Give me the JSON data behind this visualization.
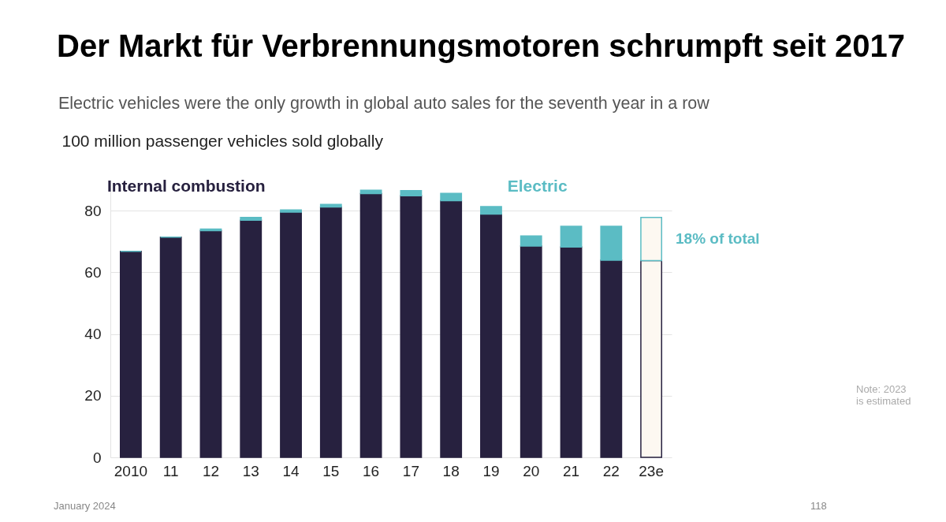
{
  "chart_data": {
    "type": "bar",
    "title": "Der Markt für Verbrennungsmotoren schrumpft seit 2017",
    "subtitle": "Electric vehicles were the only growth in global auto sales for the seventh year in a row",
    "ylabel": "100 million passenger vehicles sold globally",
    "categories": [
      "2010",
      "11",
      "12",
      "13",
      "14",
      "15",
      "16",
      "17",
      "18",
      "19",
      "20",
      "21",
      "22",
      "23e"
    ],
    "stacked": true,
    "ylim": [
      0,
      90
    ],
    "yticks": [
      0,
      20,
      40,
      60,
      80
    ],
    "grid": "y",
    "series": [
      {
        "name": "Internal combustion",
        "color": "#27213f",
        "colors": [
          "#27213f",
          "#27213f",
          "#27213f",
          "#27213f",
          "#27213f",
          "#27213f",
          "#27213f",
          "#27213f",
          "#27213f",
          "#27213f",
          "#27213f",
          "#27213f",
          "#27213f",
          "#fdf8f1"
        ],
        "values": [
          66.8,
          71.4,
          73.5,
          76.9,
          79.5,
          81.2,
          85.5,
          84.8,
          83.2,
          78.9,
          68.5,
          68.2,
          63.9,
          63.8
        ]
      },
      {
        "name": "Electric",
        "color": "#5bbcc4",
        "colors": [
          "#5bbcc4",
          "#5bbcc4",
          "#5bbcc4",
          "#5bbcc4",
          "#5bbcc4",
          "#5bbcc4",
          "#5bbcc4",
          "#5bbcc4",
          "#5bbcc4",
          "#5bbcc4",
          "#5bbcc4",
          "#5bbcc4",
          "#5bbcc4",
          "#fdf8f1"
        ],
        "values": [
          0,
          0,
          0.5,
          0.9,
          0.7,
          0.8,
          1.1,
          1.7,
          2.4,
          2.4,
          3.3,
          6.7,
          11.0,
          14.0
        ]
      }
    ],
    "annotations": [
      "18% of total",
      "Note: 2023 is estimated",
      "January 2024",
      "118"
    ]
  }
}
